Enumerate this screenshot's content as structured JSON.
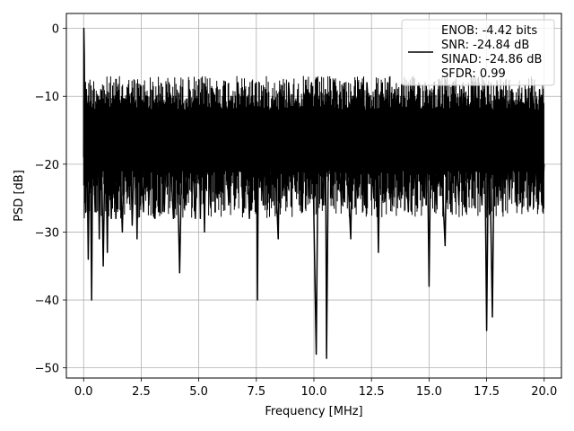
{
  "chart_data": {
    "type": "line",
    "title": "",
    "xlabel": "Frequency [MHz]",
    "ylabel": "PSD [dB]",
    "xlim": [
      -0.75,
      20.75
    ],
    "ylim": [
      -51.5,
      2.2
    ],
    "x_ticks": [
      0.0,
      2.5,
      5.0,
      7.5,
      10.0,
      12.5,
      15.0,
      17.5,
      20.0
    ],
    "x_tick_labels": [
      "0.0",
      "2.5",
      "5.0",
      "7.5",
      "10.0",
      "12.5",
      "15.0",
      "17.5",
      "20.0"
    ],
    "y_ticks": [
      0,
      -10,
      -20,
      -30,
      -40,
      -50
    ],
    "y_tick_labels": [
      "0",
      "−10",
      "−20",
      "−30",
      "−40",
      "−50"
    ],
    "grid": true,
    "legend_position": "top-right",
    "series": [
      {
        "name": "ENOB: -4.42 bits\nSNR: -24.84 dB\nSINAD: -24.86 dB\nSFDR: 0.99",
        "color": "#000000",
        "x_range": [
          0.0,
          20.0
        ],
        "points": [
          [
            0.0,
            -19
          ],
          [
            0.01,
            0
          ],
          [
            0.03,
            -4
          ],
          [
            0.06,
            -22
          ],
          [
            0.1,
            -27
          ],
          [
            0.12,
            -9
          ],
          [
            0.2,
            -34
          ],
          [
            0.27,
            -11
          ],
          [
            0.35,
            -40
          ],
          [
            0.4,
            -14
          ],
          [
            0.5,
            -27
          ],
          [
            0.6,
            -10
          ],
          [
            0.68,
            -31
          ],
          [
            0.75,
            -12
          ],
          [
            0.85,
            -35
          ],
          [
            0.95,
            -13
          ],
          [
            1.03,
            -33
          ],
          [
            1.1,
            -11
          ],
          [
            1.2,
            -28
          ],
          [
            1.3,
            -10
          ],
          [
            1.4,
            -28
          ],
          [
            1.52,
            -14
          ],
          [
            1.68,
            -30
          ],
          [
            1.79,
            -13
          ],
          [
            1.9,
            -25
          ],
          [
            2.0,
            -10
          ],
          [
            2.11,
            -29
          ],
          [
            2.25,
            -12
          ],
          [
            2.32,
            -31
          ],
          [
            2.4,
            -11
          ],
          [
            2.6,
            -27
          ],
          [
            2.7,
            -10
          ],
          [
            2.83,
            -26
          ],
          [
            2.95,
            -12
          ],
          [
            3.1,
            -28
          ],
          [
            3.2,
            -11
          ],
          [
            3.25,
            -27
          ],
          [
            3.38,
            -10
          ],
          [
            3.5,
            -27
          ],
          [
            3.65,
            -12
          ],
          [
            3.9,
            -28
          ],
          [
            4.0,
            -10
          ],
          [
            4.17,
            -36
          ],
          [
            4.3,
            -12
          ],
          [
            4.45,
            -26
          ],
          [
            4.6,
            -9
          ],
          [
            4.85,
            -28
          ],
          [
            5.0,
            -11
          ],
          [
            5.07,
            -28
          ],
          [
            5.15,
            -9
          ],
          [
            5.25,
            -30
          ],
          [
            5.33,
            -10
          ],
          [
            5.5,
            -26
          ],
          [
            5.6,
            -9
          ],
          [
            5.8,
            -25
          ],
          [
            5.9,
            -11
          ],
          [
            6.0,
            -24
          ],
          [
            6.1,
            -9
          ],
          [
            6.3,
            -26
          ],
          [
            6.4,
            -10
          ],
          [
            6.6,
            -25
          ],
          [
            6.7,
            -8
          ],
          [
            6.9,
            -25
          ],
          [
            7.0,
            -9
          ],
          [
            7.2,
            -28
          ],
          [
            7.3,
            -10
          ],
          [
            7.45,
            -22
          ],
          [
            7.5,
            -8
          ],
          [
            7.55,
            -40
          ],
          [
            7.6,
            -11
          ],
          [
            7.8,
            -26
          ],
          [
            7.9,
            -9
          ],
          [
            8.1,
            -25
          ],
          [
            8.2,
            -10
          ],
          [
            8.45,
            -31
          ],
          [
            8.55,
            -9
          ],
          [
            8.8,
            -25
          ],
          [
            8.9,
            -8
          ],
          [
            9.2,
            -24
          ],
          [
            9.3,
            -9
          ],
          [
            9.5,
            -27
          ],
          [
            9.6,
            -10
          ],
          [
            9.8,
            -25
          ],
          [
            9.9,
            -8
          ],
          [
            10.1,
            -48
          ],
          [
            10.2,
            -11
          ],
          [
            10.4,
            -26
          ],
          [
            10.5,
            -9
          ],
          [
            10.55,
            -48.6
          ],
          [
            10.65,
            -10
          ],
          [
            10.8,
            -25
          ],
          [
            10.9,
            -8
          ],
          [
            11.2,
            -26
          ],
          [
            11.3,
            -9
          ],
          [
            11.6,
            -31
          ],
          [
            11.7,
            -10
          ],
          [
            11.9,
            -25
          ],
          [
            12.0,
            -9
          ],
          [
            12.2,
            -26
          ],
          [
            12.3,
            -8
          ],
          [
            12.6,
            -25
          ],
          [
            12.7,
            -9
          ],
          [
            12.8,
            -33
          ],
          [
            12.9,
            -10
          ],
          [
            13.1,
            -25
          ],
          [
            13.2,
            -8
          ],
          [
            13.4,
            -26
          ],
          [
            13.5,
            -9
          ],
          [
            13.8,
            -25
          ],
          [
            13.9,
            -10
          ],
          [
            14.1,
            -27
          ],
          [
            14.2,
            -9
          ],
          [
            14.45,
            -26
          ],
          [
            14.55,
            -8
          ],
          [
            14.8,
            -25
          ],
          [
            14.9,
            -9
          ],
          [
            15.0,
            -38
          ],
          [
            15.1,
            -10
          ],
          [
            15.3,
            -26
          ],
          [
            15.4,
            -9
          ],
          [
            15.7,
            -32
          ],
          [
            15.8,
            -10
          ],
          [
            15.95,
            -27
          ],
          [
            16.05,
            -8
          ],
          [
            16.3,
            -26
          ],
          [
            16.4,
            -9
          ],
          [
            16.6,
            -27
          ],
          [
            16.7,
            -10
          ],
          [
            16.9,
            -25
          ],
          [
            17.0,
            -8
          ],
          [
            17.3,
            -26
          ],
          [
            17.4,
            -9
          ],
          [
            17.5,
            -44.5
          ],
          [
            17.6,
            -11
          ],
          [
            17.75,
            -42.5
          ],
          [
            17.85,
            -10
          ],
          [
            18.0,
            -26
          ],
          [
            18.1,
            -9
          ],
          [
            18.2,
            -27
          ],
          [
            18.3,
            -10
          ],
          [
            18.5,
            -25
          ],
          [
            18.6,
            -9
          ],
          [
            18.8,
            -26
          ],
          [
            18.9,
            -10
          ],
          [
            19.1,
            -25
          ],
          [
            19.2,
            -9
          ],
          [
            19.4,
            -26
          ],
          [
            19.5,
            -10
          ],
          [
            19.7,
            -25
          ],
          [
            19.8,
            -9
          ],
          [
            19.9,
            -26
          ],
          [
            20.0,
            -20
          ]
        ]
      }
    ]
  }
}
